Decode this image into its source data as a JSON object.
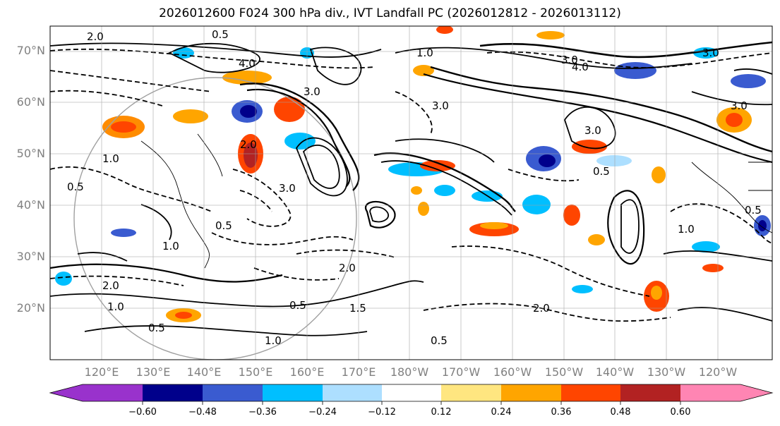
{
  "title": "2026012600 F024 300 hPa div., IVT Landfall PC (2026012812 - 2026013112)",
  "lat_labels": [
    "70°N",
    "60°N",
    "50°N",
    "40°N",
    "30°N",
    "20°N"
  ],
  "lon_labels": [
    "120°E",
    "130°E",
    "140°E",
    "150°E",
    "160°E",
    "170°E",
    "180°W",
    "170°W",
    "160°W",
    "150°W",
    "140°W",
    "130°W",
    "120°W"
  ],
  "colorbar": {
    "ticks": [
      "−0.60",
      "−0.48",
      "−0.36",
      "−0.24",
      "−0.12",
      "0.12",
      "0.24",
      "0.36",
      "0.48",
      "0.60"
    ],
    "colors": [
      "#9932CC",
      "#00008B",
      "#3A5BD0",
      "#00BFFF",
      "#ADDFFF",
      "#FFFFFF",
      "#FFE680",
      "#FFA500",
      "#FF4500",
      "#B22222",
      "#FF85B3"
    ]
  },
  "contour_labels": [
    "0.5",
    "1.0",
    "1.5",
    "2.0",
    "3.0",
    "4.0"
  ]
}
